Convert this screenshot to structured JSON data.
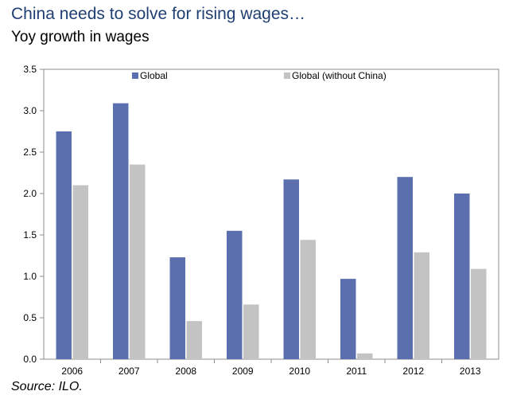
{
  "title": "China needs to solve for rising wages…",
  "subtitle": "Yoy growth in wages",
  "source": "Source:  ILO.",
  "chart_data": {
    "type": "bar",
    "categories": [
      "2006",
      "2007",
      "2008",
      "2009",
      "2010",
      "2011",
      "2012",
      "2013"
    ],
    "series": [
      {
        "name": "Global",
        "color": "#5b6fae",
        "values": [
          2.75,
          3.09,
          1.23,
          1.55,
          2.17,
          0.97,
          2.2,
          2.0
        ]
      },
      {
        "name": "Global (without China)",
        "color": "#c3c3c3",
        "values": [
          2.1,
          2.35,
          0.46,
          0.66,
          1.44,
          0.07,
          1.29,
          1.09
        ]
      }
    ],
    "ylim": [
      0,
      3.5
    ],
    "yticks": [
      "0.0",
      "0.5",
      "1.0",
      "1.5",
      "2.0",
      "2.5",
      "3.0",
      "3.5"
    ],
    "grid": false,
    "legend": "top"
  }
}
